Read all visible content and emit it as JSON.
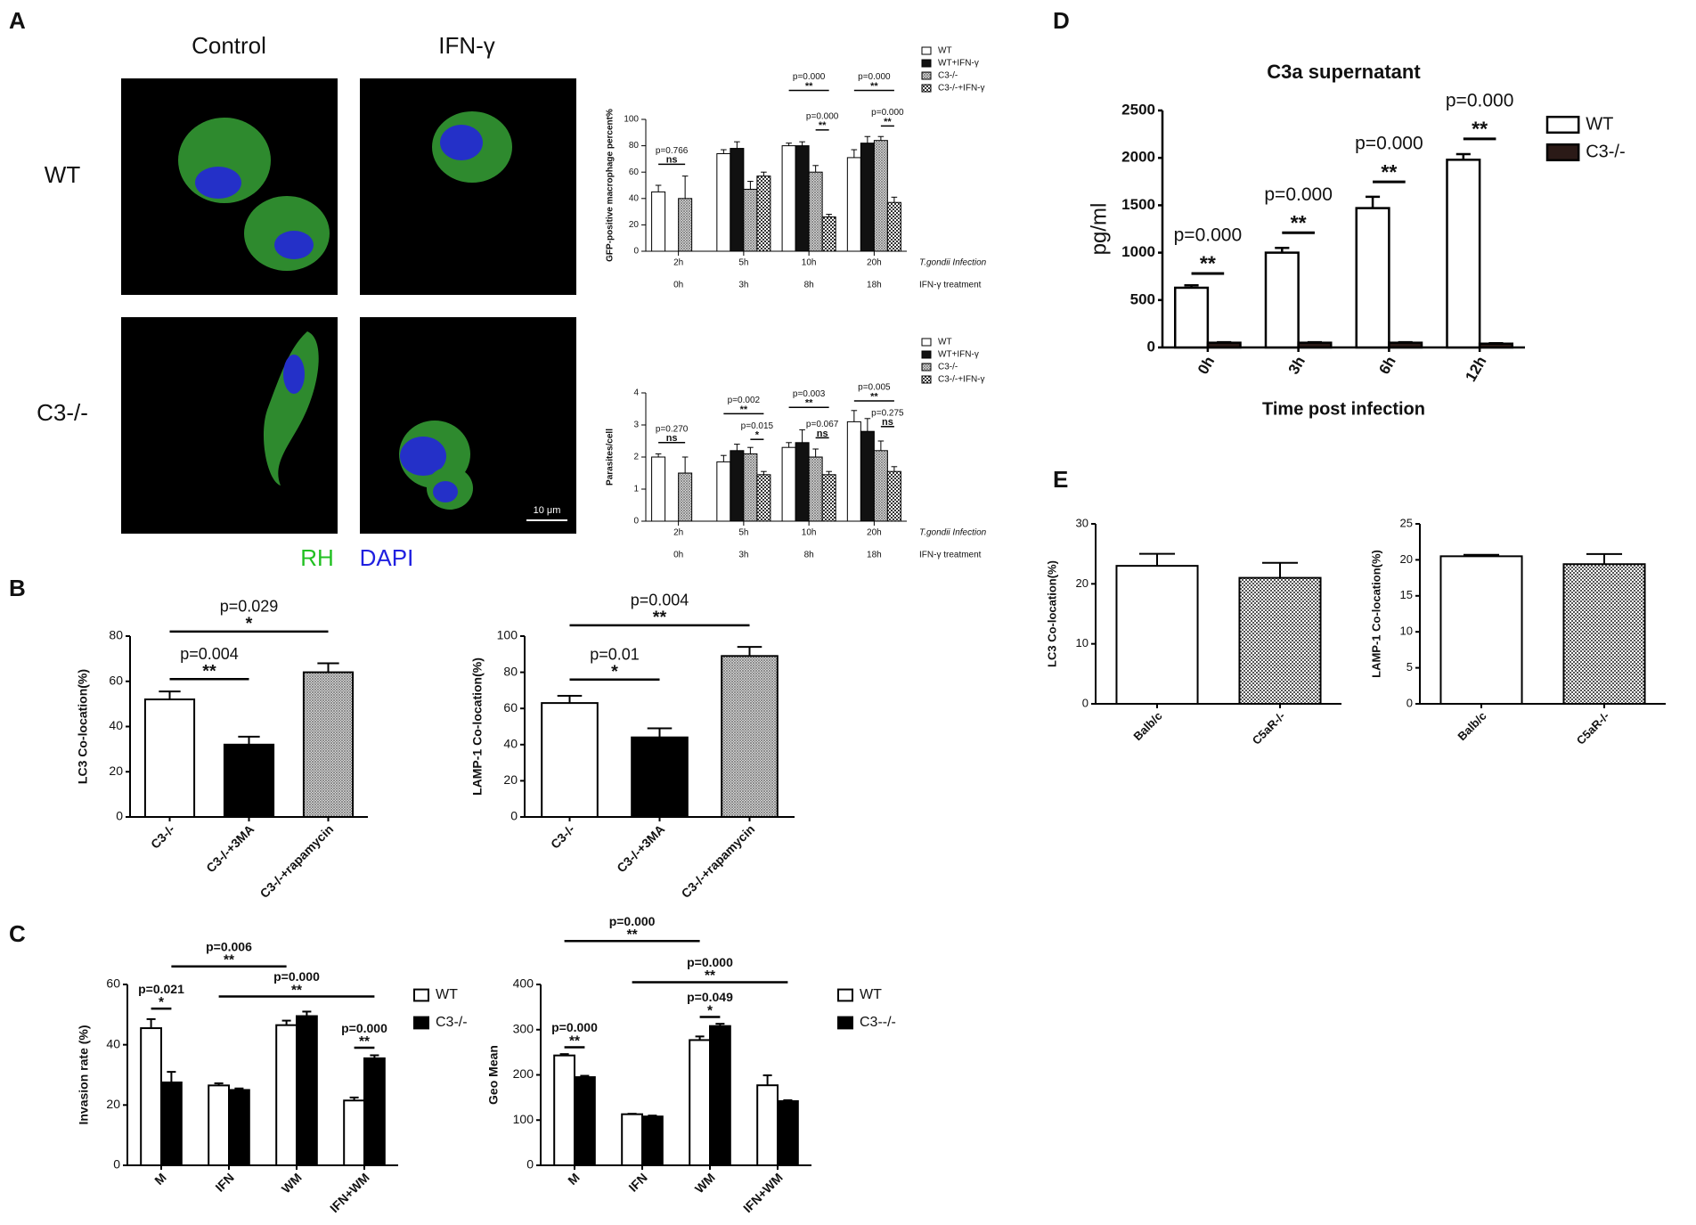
{
  "panel_labels": [
    "A",
    "B",
    "C",
    "D",
    "E"
  ],
  "micrographs": {
    "columns": [
      "Control",
      "IFN-γ"
    ],
    "rows": [
      "WT",
      "C3-/-"
    ],
    "stains": [
      "RH",
      "DAPI"
    ],
    "scale_bar": "10 μm"
  },
  "chart_data": [
    {
      "type": "bar",
      "ylabel": "GFP-positive macrophage percent%",
      "categories": [
        "2h",
        "5h",
        "10h",
        "20h"
      ],
      "categories2": [
        "0h",
        "3h",
        "8h",
        "18h"
      ],
      "xlabel": "T.gondii Infection",
      "xlabel2": "IFN-γ treatment",
      "ylim": [
        0,
        100
      ],
      "yticks": [
        0,
        20,
        40,
        60,
        80,
        100
      ],
      "series": [
        {
          "name": "WT",
          "color": "#ffffff",
          "pattern": "solid",
          "values": [
            45,
            74,
            80,
            71
          ],
          "errors": [
            5,
            3,
            2,
            6
          ]
        },
        {
          "name": "WT+IFN-γ",
          "color": "#111111",
          "pattern": "solid",
          "values": [
            null,
            78,
            80,
            82
          ],
          "errors": [
            null,
            5,
            3,
            5
          ]
        },
        {
          "name": "C3-/-",
          "color": "#777777",
          "pattern": "hatch",
          "values": [
            40,
            47,
            60,
            84
          ],
          "errors": [
            17,
            6,
            5,
            3
          ]
        },
        {
          "name": "C3-/-+IFN-γ",
          "color": "#333333",
          "pattern": "checker",
          "values": [
            null,
            57,
            26,
            37
          ],
          "errors": [
            null,
            3,
            2,
            4
          ]
        }
      ],
      "annotations": [
        {
          "p": "p=0.766",
          "sig": "ns"
        },
        {
          "p": "p=0.000",
          "sig": "**"
        },
        {
          "p": "p=0.000",
          "sig": "**"
        },
        {
          "p": "p=0.000",
          "sig": "**"
        },
        {
          "p": "p=0.000",
          "sig": "**"
        }
      ]
    },
    {
      "type": "bar",
      "ylabel": "Parasites/cell",
      "categories": [
        "2h",
        "5h",
        "10h",
        "20h"
      ],
      "categories2": [
        "0h",
        "3h",
        "8h",
        "18h"
      ],
      "xlabel": "T.gondii Infection",
      "xlabel2": "IFN-γ treatment",
      "ylim": [
        0,
        4
      ],
      "yticks": [
        0,
        1,
        2,
        3,
        4
      ],
      "series": [
        {
          "name": "WT",
          "color": "#ffffff",
          "pattern": "solid",
          "values": [
            2.0,
            1.85,
            2.3,
            3.1
          ],
          "errors": [
            0.1,
            0.2,
            0.15,
            0.35
          ]
        },
        {
          "name": "WT+IFN-γ",
          "color": "#111111",
          "pattern": "solid",
          "values": [
            null,
            2.2,
            2.45,
            2.8
          ],
          "errors": [
            null,
            0.2,
            0.4,
            0.4
          ]
        },
        {
          "name": "C3-/-",
          "color": "#777777",
          "pattern": "hatch",
          "values": [
            1.5,
            2.1,
            2.0,
            2.2
          ],
          "errors": [
            0.5,
            0.2,
            0.25,
            0.3
          ]
        },
        {
          "name": "C3-/-+IFN-γ",
          "color": "#333333",
          "pattern": "checker",
          "values": [
            null,
            1.45,
            1.45,
            1.55
          ],
          "errors": [
            null,
            0.1,
            0.1,
            0.15
          ]
        }
      ],
      "annotations": [
        {
          "p": "p=0.270",
          "sig": "ns"
        },
        {
          "p": "p=0.002",
          "sig": "**"
        },
        {
          "p": "p=0.015",
          "sig": "*"
        },
        {
          "p": "p=0.003",
          "sig": "**"
        },
        {
          "p": "p=0.067",
          "sig": "ns"
        },
        {
          "p": "p=0.005",
          "sig": "**"
        },
        {
          "p": "p=0.275",
          "sig": "ns"
        }
      ]
    },
    {
      "type": "bar",
      "ylabel": "LC3 Co-location(%)",
      "categories": [
        "C3-/-",
        "C3-/-+3MA",
        "C3-/-+rapamycin"
      ],
      "values": [
        52,
        32,
        64
      ],
      "errors": [
        3.5,
        3.5,
        4
      ],
      "colors": [
        "#ffffff",
        "#000000",
        "#777777"
      ],
      "patterns": [
        "solid",
        "solid",
        "hatch"
      ],
      "ylim": [
        0,
        80
      ],
      "yticks": [
        0,
        20,
        40,
        60,
        80
      ],
      "annotations": [
        {
          "p": "p=0.004",
          "sig": "**"
        },
        {
          "p": "p=0.029",
          "sig": "*"
        }
      ]
    },
    {
      "type": "bar",
      "ylabel": "LAMP-1 Co-location(%)",
      "categories": [
        "C3-/-",
        "C3-/-+3MA",
        "C3-/-+rapamycin"
      ],
      "values": [
        63,
        44,
        89
      ],
      "errors": [
        4,
        5,
        5
      ],
      "colors": [
        "#ffffff",
        "#000000",
        "#777777"
      ],
      "patterns": [
        "solid",
        "solid",
        "hatch"
      ],
      "ylim": [
        0,
        100
      ],
      "yticks": [
        0,
        20,
        40,
        60,
        80,
        100
      ],
      "annotations": [
        {
          "p": "p=0.01",
          "sig": "*"
        },
        {
          "p": "p=0.004",
          "sig": "**"
        }
      ]
    },
    {
      "type": "bar",
      "ylabel": "Invasion rate (%)",
      "categories": [
        "M",
        "IFN",
        "WM",
        "IFN+WM"
      ],
      "ylim": [
        0,
        60
      ],
      "yticks": [
        0,
        20,
        40,
        60
      ],
      "series": [
        {
          "name": "WT",
          "color": "#ffffff",
          "pattern": "solid",
          "values": [
            45.5,
            26.5,
            46.5,
            21.5
          ],
          "errors": [
            3,
            0.7,
            1.5,
            1
          ]
        },
        {
          "name": "C3-/-",
          "color": "#000000",
          "pattern": "solid",
          "values": [
            27.5,
            25,
            49.5,
            35.5
          ],
          "errors": [
            3.5,
            0.5,
            1.5,
            1
          ]
        }
      ],
      "annotations": [
        {
          "p": "p=0.021",
          "sig": "*"
        },
        {
          "p": "p=0.006",
          "sig": "**"
        },
        {
          "p": "p=0.000",
          "sig": "**"
        },
        {
          "p": "p=0.000",
          "sig": "**"
        }
      ]
    },
    {
      "type": "bar",
      "ylabel": "Geo Mean",
      "categories": [
        "M",
        "IFN",
        "WM",
        "IFN+WM"
      ],
      "ylim": [
        0,
        400
      ],
      "yticks": [
        0,
        100,
        200,
        300,
        400
      ],
      "series": [
        {
          "name": "WT",
          "color": "#ffffff",
          "pattern": "solid",
          "values": [
            243,
            113,
            277,
            177
          ],
          "errors": [
            3,
            1,
            8,
            22
          ]
        },
        {
          "name": "C3--/-",
          "color": "#000000",
          "pattern": "solid",
          "values": [
            195,
            108,
            308,
            142
          ],
          "errors": [
            3,
            2,
            5,
            2
          ]
        }
      ],
      "annotations": [
        {
          "p": "p=0.000",
          "sig": "**"
        },
        {
          "p": "p=0.000",
          "sig": "**"
        },
        {
          "p": "p=0.000",
          "sig": "**"
        },
        {
          "p": "p=0.049",
          "sig": "*"
        }
      ]
    },
    {
      "type": "bar",
      "title": "C3a supernatant",
      "ylabel": "pg/ml",
      "xlabel": "Time post infection",
      "categories": [
        "0h",
        "3h",
        "6h",
        "12h"
      ],
      "ylim": [
        0,
        2500
      ],
      "yticks": [
        0,
        500,
        1000,
        1500,
        2000,
        2500
      ],
      "series": [
        {
          "name": "WT",
          "color": "#ffffff",
          "pattern": "solid",
          "values": [
            630,
            1000,
            1470,
            1980
          ],
          "errors": [
            25,
            50,
            120,
            60
          ]
        },
        {
          "name": "C3-/-",
          "color": "#2b1a17",
          "pattern": "solid",
          "values": [
            50,
            50,
            50,
            40
          ],
          "errors": [
            5,
            5,
            5,
            5
          ]
        }
      ],
      "annotations": [
        {
          "p": "p=0.000",
          "sig": "**"
        },
        {
          "p": "p=0.000",
          "sig": "**"
        },
        {
          "p": "p=0.000",
          "sig": "**"
        },
        {
          "p": "p=0.000",
          "sig": "**"
        }
      ]
    },
    {
      "type": "bar",
      "ylabel": "LC3 Co-location(%)",
      "categories": [
        "Balb/c",
        "C5aR-/-"
      ],
      "values": [
        23,
        21
      ],
      "errors": [
        2,
        2.5
      ],
      "colors": [
        "#ffffff",
        "#555555"
      ],
      "patterns": [
        "solid",
        "checker"
      ],
      "ylim": [
        0,
        30
      ],
      "yticks": [
        0,
        10,
        20,
        30
      ]
    },
    {
      "type": "bar",
      "ylabel": "LAMP-1 Co-location(%)",
      "categories": [
        "Balb/c",
        "C5aR-/-"
      ],
      "values": [
        20.5,
        19.4
      ],
      "errors": [
        0.2,
        1.4
      ],
      "colors": [
        "#ffffff",
        "#555555"
      ],
      "patterns": [
        "solid",
        "checker"
      ],
      "ylim": [
        0,
        25
      ],
      "yticks": [
        0,
        5,
        10,
        15,
        20,
        25
      ]
    }
  ]
}
